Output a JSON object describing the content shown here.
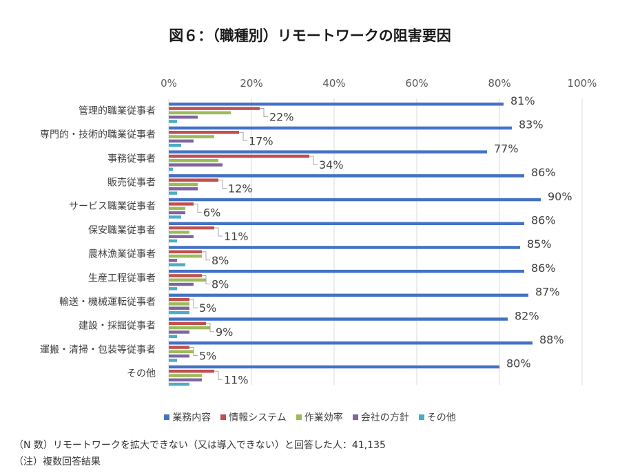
{
  "chart_data": {
    "type": "bar",
    "orientation": "horizontal",
    "title": "図６：（職種別）リモートワークの阻害要因",
    "categories": [
      "管理的職業従事者",
      "専門的・技術的職業従事者",
      "事務従事者",
      "販売従事者",
      "サービス職業従事者",
      "保安職業従事者",
      "農林漁業従事者",
      "生産工程従事者",
      "輸送・機械運転従事者",
      "建設・採掘従事者",
      "運搬・清掃・包装等従事者",
      "その他"
    ],
    "series": [
      {
        "name": "業務内容",
        "color": "#4472c4",
        "values": [
          81,
          83,
          77,
          86,
          90,
          86,
          85,
          86,
          87,
          82,
          88,
          80
        ]
      },
      {
        "name": "情報システム",
        "color": "#c0504d",
        "values": [
          22,
          17,
          34,
          12,
          6,
          11,
          8,
          8,
          5,
          9,
          5,
          11
        ]
      },
      {
        "name": "作業効率",
        "color": "#9bbb59",
        "values": [
          15,
          11,
          12,
          7,
          4,
          5,
          8,
          9,
          5,
          10,
          6,
          8
        ]
      },
      {
        "name": "会社の方針",
        "color": "#8064a2",
        "values": [
          7,
          6,
          13,
          7,
          4,
          6,
          2,
          6,
          5,
          5,
          5,
          8
        ]
      },
      {
        "name": "その他",
        "color": "#4bacc6",
        "values": [
          2,
          3,
          1,
          2,
          3,
          2,
          4,
          2,
          5,
          2,
          2,
          5
        ]
      }
    ],
    "data_labels": {
      "業務内容": [
        "81%",
        "83%",
        "77%",
        "86%",
        "90%",
        "86%",
        "85%",
        "86%",
        "87%",
        "82%",
        "88%",
        "80%"
      ],
      "情報システム": [
        "22%",
        "17%",
        "34%",
        "12%",
        "6%",
        "11%",
        "8%",
        "8%",
        "5%",
        "9%",
        "5%",
        "11%"
      ]
    },
    "x_ticks": [
      "0%",
      "20%",
      "40%",
      "60%",
      "80%",
      "100%"
    ],
    "xlim": [
      0,
      100
    ],
    "grid": true,
    "legend_position": "bottom"
  },
  "footnotes": {
    "n": "（N 数）リモートワークを拡大できない（又は導入できない）と回答した人：41,135",
    "note": "（注）複数回答結果"
  }
}
